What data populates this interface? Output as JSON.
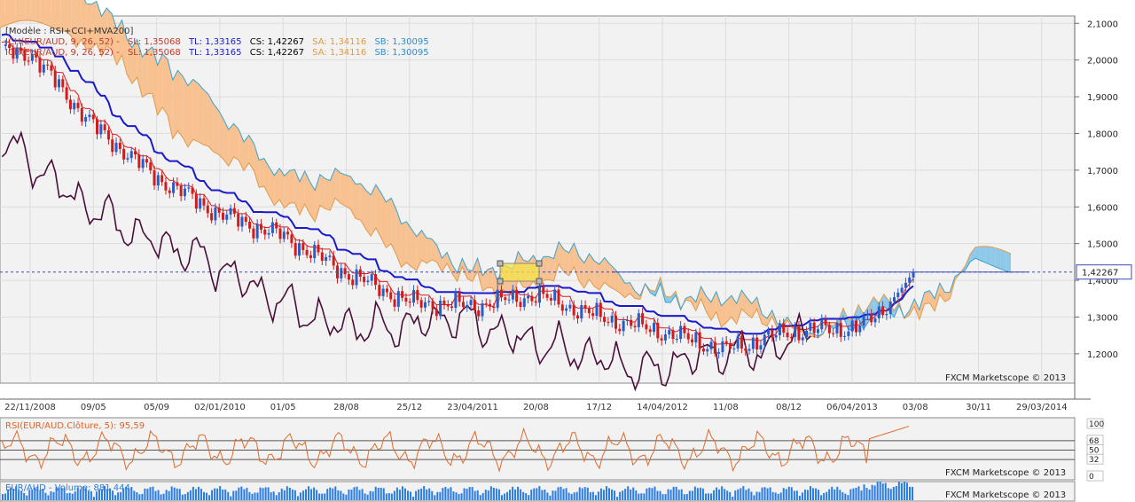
{
  "header": {
    "model": "[Modèle : RSI+CCI+MVA200]",
    "ich_label": "ICH(EUR/AUD, 9, 26, 52) -",
    "sl": "SL: 1,35068",
    "tl": "TL: 1,33165",
    "cs": "CS: 1,42267",
    "sa": "SA: 1,34116",
    "sb": "SB: 1,30095"
  },
  "price_panel": {
    "y_ticks": [
      "2,1000",
      "2,0000",
      "1,9000",
      "1,8000",
      "1,7000",
      "1,6000",
      "1,5000",
      "1,4000",
      "1,3000",
      "1,2000"
    ],
    "current_price": "1,42267",
    "watermark": "FXCM Marketscope © 2013"
  },
  "date_axis": {
    "labels": [
      "22/11/2008",
      "09/05",
      "05/09",
      "02/01/2010",
      "01/05",
      "28/08",
      "25/12",
      "23/04/2011",
      "20/08",
      "17/12",
      "14/04/2012",
      "11/08",
      "08/12",
      "06/04/2013",
      "03/08",
      "30/11",
      "29/03/2014"
    ]
  },
  "rsi_panel": {
    "label": "RSI(EUR/AUD.Clôture, 5): 95,59",
    "levels": [
      "100",
      "68",
      "50",
      "32",
      "0"
    ],
    "watermark": "FXCM Marketscope © 2013"
  },
  "volume_panel": {
    "label": "EUR/AUD - Volume: 881 444",
    "watermark": "FXCM Marketscope © 2013"
  },
  "colors": {
    "up_candle": "#2a5cc9",
    "down_candle": "#d01c1c",
    "tenkan": "#e31a1a",
    "kijun": "#1a1acc",
    "chikou": "#4a0f3a",
    "cloud_orange": "#f7c191",
    "cloud_blue": "#8ec9ea",
    "rsi_line": "#e06a2a",
    "volume": "#2b7ce0"
  },
  "chart_data": {
    "type": "line",
    "instrument": "EUR/AUD",
    "x": [
      "22/11/2008",
      "09/05",
      "05/09",
      "02/01/2010",
      "01/05",
      "28/08",
      "25/12",
      "23/04/2011",
      "20/08",
      "17/12",
      "14/04/2012",
      "11/08",
      "08/12",
      "06/04/2013"
    ],
    "series": [
      {
        "name": "Clôture",
        "values": [
          2.02,
          1.82,
          1.68,
          1.58,
          1.52,
          1.42,
          1.34,
          1.33,
          1.36,
          1.3,
          1.26,
          1.21,
          1.26,
          1.27
        ]
      }
    ],
    "last_close": 1.42267,
    "ylim": [
      1.12,
      2.12
    ],
    "rsi_last": 95.59,
    "volume_last": 881444
  }
}
